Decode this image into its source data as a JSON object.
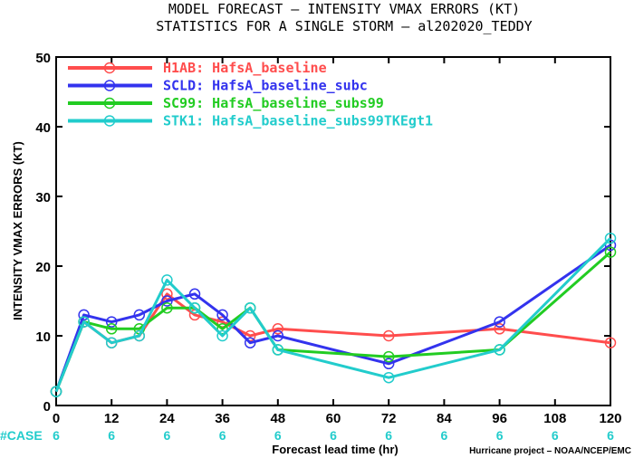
{
  "chart_data": {
    "type": "line",
    "title": "MODEL FORECAST – INTENSITY VMAX ERRORS (KT)",
    "subtitle": "STATISTICS FOR A SINGLE STORM – al202020_TEDDY",
    "xlabel": "Forecast lead time (hr)",
    "ylabel": "INTENSITY VMAX ERRORS (KT)",
    "xlim": [
      0,
      120
    ],
    "ylim": [
      0,
      50
    ],
    "x_ticks": [
      "0",
      "12",
      "24",
      "36",
      "48",
      "60",
      "72",
      "84",
      "96",
      "108",
      "120"
    ],
    "y_ticks": [
      "0",
      "10",
      "20",
      "30",
      "40",
      "50"
    ],
    "legend_position": "top-left",
    "grid": false,
    "series": [
      {
        "name": "H1AB: HafsA_baseline",
        "color": "#ff4d4d",
        "x": [
          0,
          6,
          12,
          18,
          24,
          30,
          36,
          42,
          48,
          72,
          96,
          120
        ],
        "y": [
          2,
          12,
          9,
          10,
          16,
          13,
          12,
          10,
          11,
          10,
          11,
          9
        ]
      },
      {
        "name": "SCLD: HafsA_baseline_subc",
        "color": "#3333ee",
        "x": [
          0,
          6,
          12,
          18,
          24,
          30,
          36,
          42,
          48,
          72,
          96,
          120
        ],
        "y": [
          2,
          13,
          12,
          13,
          15,
          16,
          13,
          9,
          10,
          6,
          12,
          23
        ]
      },
      {
        "name": "SC99: HafsA_baseline_subs99",
        "color": "#22cc22",
        "x": [
          0,
          6,
          12,
          18,
          24,
          30,
          36,
          42,
          48,
          72,
          96,
          120
        ],
        "y": [
          2,
          12,
          11,
          11,
          14,
          14,
          11,
          14,
          8,
          7,
          8,
          22
        ]
      },
      {
        "name": "STK1: HafsA_baseline_subs99TKEgt1",
        "color": "#22cccc",
        "x": [
          0,
          6,
          12,
          18,
          24,
          30,
          36,
          42,
          48,
          72,
          96,
          120
        ],
        "y": [
          2,
          12,
          9,
          10,
          18,
          14,
          10,
          14,
          8,
          4,
          8,
          24
        ]
      }
    ],
    "case_counts": {
      "label": "#CASE",
      "color": "#22cccc",
      "x": [
        0,
        12,
        24,
        36,
        48,
        60,
        72,
        84,
        96,
        108,
        120
      ],
      "values": [
        "6",
        "6",
        "6",
        "6",
        "6",
        "6",
        "6",
        "6",
        "6",
        "6",
        "6"
      ]
    },
    "credit": "Hurricane project – NOAA/NCEP/EMC"
  }
}
